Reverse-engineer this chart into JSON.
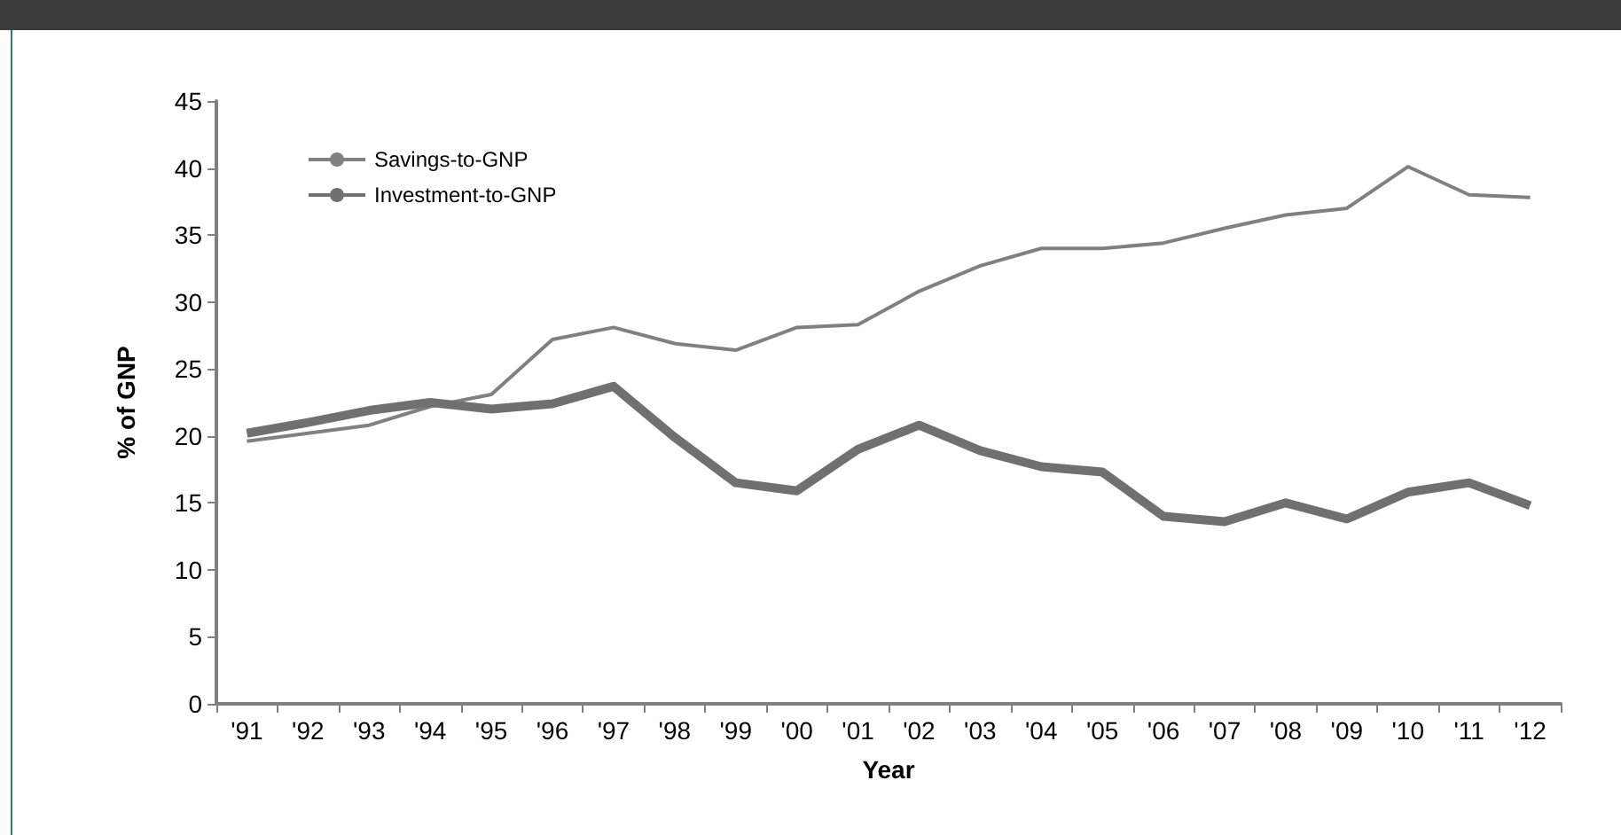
{
  "chart_data": {
    "type": "line",
    "xlabel": "Year",
    "ylabel": "% of GNP",
    "categories": [
      "'91",
      "'92",
      "'93",
      "'94",
      "'95",
      "'96",
      "'97",
      "'98",
      "'99",
      "'00",
      "'01",
      "'02",
      "'03",
      "'04",
      "'05",
      "'06",
      "'07",
      "'08",
      "'09",
      "'10",
      "'11",
      "'12"
    ],
    "series": [
      {
        "name": "Savings-to-GNP",
        "color": "#808080",
        "values": [
          19.6,
          20.2,
          20.8,
          22.2,
          23.1,
          27.2,
          28.1,
          26.9,
          26.4,
          28.1,
          28.3,
          30.8,
          32.7,
          34.0,
          34.0,
          34.4,
          35.5,
          36.5,
          37.0,
          40.1,
          38.0,
          37.8
        ]
      },
      {
        "name": "Investment-to-GNP",
        "color": "#707070",
        "values": [
          20.2,
          21.0,
          21.9,
          22.5,
          22.0,
          22.4,
          23.7,
          19.9,
          16.5,
          15.9,
          19.0,
          20.8,
          18.9,
          17.7,
          17.3,
          14.0,
          13.6,
          15.0,
          13.8,
          15.8,
          16.5,
          14.8
        ]
      }
    ],
    "ylim": [
      0,
      45
    ],
    "yticks": [
      0,
      5,
      10,
      15,
      20,
      25,
      30,
      35,
      40,
      45
    ],
    "grid": false,
    "legend": "top left",
    "marker": "none",
    "line_style": "solid"
  }
}
